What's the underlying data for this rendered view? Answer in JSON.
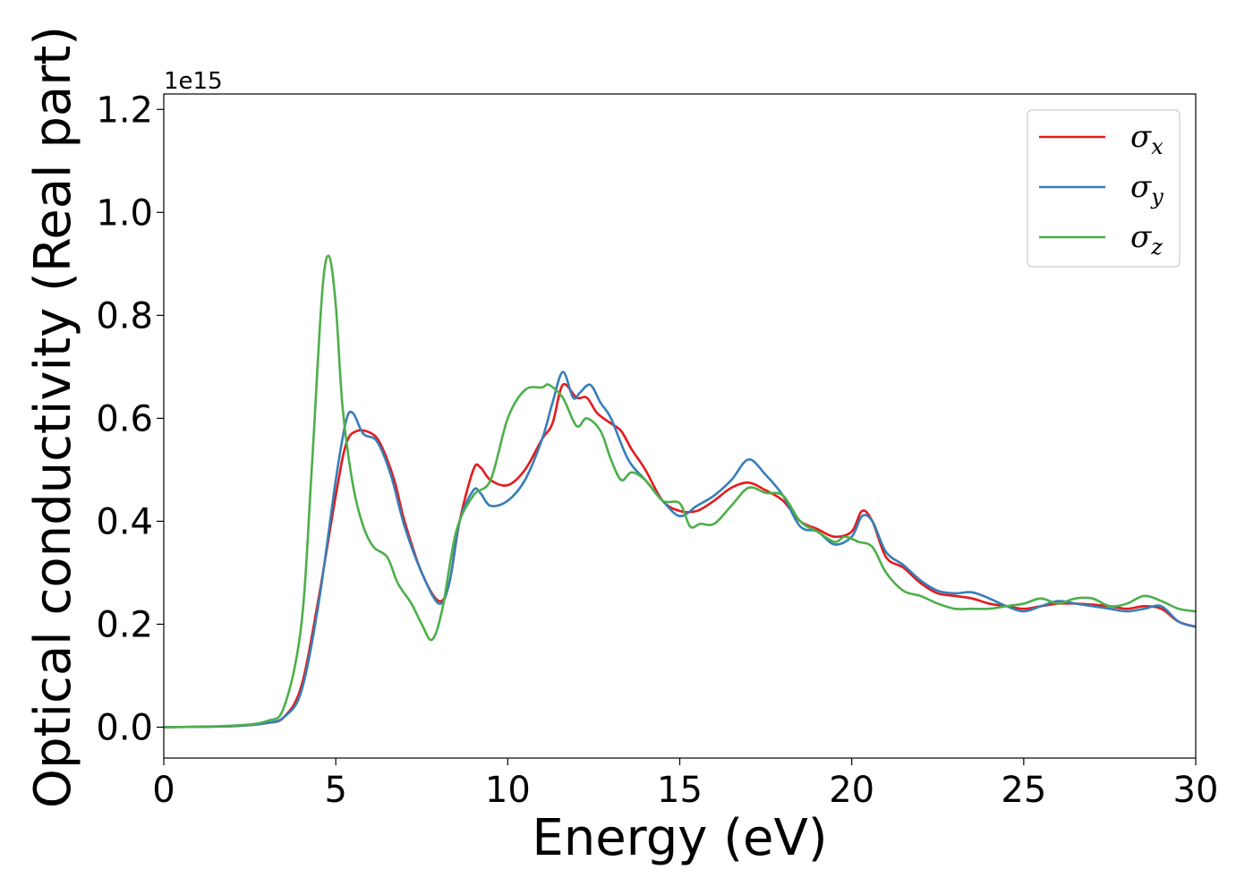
{
  "chart_data": {
    "type": "line",
    "xlabel": "Energy (eV)",
    "ylabel": "Optical conductivity (Real part)",
    "y_offset_label": "1e15",
    "xlim": [
      0,
      30
    ],
    "ylim": [
      -0.06,
      1.23
    ],
    "x_ticks": [
      0,
      5,
      10,
      15,
      20,
      25,
      30
    ],
    "x_tick_labels": [
      "0",
      "5",
      "10",
      "15",
      "20",
      "25",
      "30"
    ],
    "y_ticks": [
      0.0,
      0.2,
      0.4,
      0.6,
      0.8,
      1.0,
      1.2
    ],
    "y_tick_labels": [
      "0.0",
      "0.2",
      "0.4",
      "0.6",
      "0.8",
      "1.0",
      "1.2"
    ],
    "grid": false,
    "legend_position": "top-right",
    "series": [
      {
        "name": "σx",
        "legend_symbol": "σ",
        "legend_subscript": "x",
        "color": "#e41a1c",
        "points": [
          [
            0,
            0
          ],
          [
            2,
            0.002
          ],
          [
            3,
            0.008
          ],
          [
            3.5,
            0.02
          ],
          [
            4,
            0.08
          ],
          [
            4.5,
            0.25
          ],
          [
            5,
            0.45
          ],
          [
            5.3,
            0.55
          ],
          [
            5.6,
            0.575
          ],
          [
            6,
            0.572
          ],
          [
            6.3,
            0.55
          ],
          [
            6.7,
            0.48
          ],
          [
            7,
            0.4
          ],
          [
            7.5,
            0.3
          ],
          [
            8,
            0.245
          ],
          [
            8.3,
            0.28
          ],
          [
            8.6,
            0.4
          ],
          [
            9,
            0.5
          ],
          [
            9.2,
            0.505
          ],
          [
            9.5,
            0.48
          ],
          [
            10,
            0.47
          ],
          [
            10.5,
            0.5
          ],
          [
            11,
            0.56
          ],
          [
            11.3,
            0.59
          ],
          [
            11.6,
            0.665
          ],
          [
            12,
            0.64
          ],
          [
            12.3,
            0.64
          ],
          [
            12.6,
            0.61
          ],
          [
            13,
            0.59
          ],
          [
            13.3,
            0.575
          ],
          [
            13.6,
            0.54
          ],
          [
            14,
            0.5
          ],
          [
            14.5,
            0.44
          ],
          [
            15,
            0.42
          ],
          [
            15.5,
            0.42
          ],
          [
            16,
            0.44
          ],
          [
            16.5,
            0.465
          ],
          [
            17,
            0.475
          ],
          [
            17.5,
            0.46
          ],
          [
            18,
            0.44
          ],
          [
            18.5,
            0.4
          ],
          [
            19,
            0.385
          ],
          [
            19.5,
            0.37
          ],
          [
            20,
            0.38
          ],
          [
            20.3,
            0.42
          ],
          [
            20.6,
            0.4
          ],
          [
            21,
            0.33
          ],
          [
            21.5,
            0.31
          ],
          [
            22,
            0.28
          ],
          [
            22.5,
            0.26
          ],
          [
            23,
            0.255
          ],
          [
            23.5,
            0.25
          ],
          [
            24,
            0.24
          ],
          [
            24.5,
            0.235
          ],
          [
            25,
            0.23
          ],
          [
            25.5,
            0.235
          ],
          [
            26,
            0.24
          ],
          [
            26.5,
            0.24
          ],
          [
            27,
            0.238
          ],
          [
            27.5,
            0.235
          ],
          [
            28,
            0.23
          ],
          [
            28.5,
            0.235
          ],
          [
            29,
            0.23
          ],
          [
            29.5,
            0.205
          ],
          [
            30,
            0.195
          ]
        ]
      },
      {
        "name": "σy",
        "legend_symbol": "σ",
        "legend_subscript": "y",
        "color": "#377eb8",
        "points": [
          [
            0,
            0
          ],
          [
            2,
            0.002
          ],
          [
            3,
            0.008
          ],
          [
            3.5,
            0.02
          ],
          [
            4,
            0.07
          ],
          [
            4.5,
            0.24
          ],
          [
            5,
            0.48
          ],
          [
            5.3,
            0.595
          ],
          [
            5.5,
            0.61
          ],
          [
            5.8,
            0.57
          ],
          [
            6.2,
            0.555
          ],
          [
            6.6,
            0.49
          ],
          [
            7,
            0.39
          ],
          [
            7.5,
            0.3
          ],
          [
            8,
            0.24
          ],
          [
            8.3,
            0.28
          ],
          [
            8.6,
            0.4
          ],
          [
            9,
            0.46
          ],
          [
            9.2,
            0.455
          ],
          [
            9.5,
            0.43
          ],
          [
            10,
            0.44
          ],
          [
            10.5,
            0.48
          ],
          [
            11,
            0.56
          ],
          [
            11.3,
            0.63
          ],
          [
            11.6,
            0.69
          ],
          [
            11.9,
            0.64
          ],
          [
            12.1,
            0.65
          ],
          [
            12.4,
            0.665
          ],
          [
            12.7,
            0.63
          ],
          [
            13,
            0.6
          ],
          [
            13.5,
            0.52
          ],
          [
            14,
            0.48
          ],
          [
            14.5,
            0.44
          ],
          [
            15,
            0.41
          ],
          [
            15.5,
            0.43
          ],
          [
            16,
            0.45
          ],
          [
            16.5,
            0.48
          ],
          [
            17,
            0.52
          ],
          [
            17.5,
            0.49
          ],
          [
            18,
            0.45
          ],
          [
            18.5,
            0.39
          ],
          [
            19,
            0.38
          ],
          [
            19.5,
            0.355
          ],
          [
            20,
            0.37
          ],
          [
            20.3,
            0.41
          ],
          [
            20.6,
            0.4
          ],
          [
            21,
            0.34
          ],
          [
            21.5,
            0.315
          ],
          [
            22,
            0.285
          ],
          [
            22.5,
            0.265
          ],
          [
            23,
            0.26
          ],
          [
            23.5,
            0.262
          ],
          [
            24,
            0.25
          ],
          [
            24.5,
            0.235
          ],
          [
            25,
            0.225
          ],
          [
            25.5,
            0.235
          ],
          [
            26,
            0.245
          ],
          [
            26.5,
            0.24
          ],
          [
            27,
            0.235
          ],
          [
            27.5,
            0.23
          ],
          [
            28,
            0.225
          ],
          [
            28.5,
            0.23
          ],
          [
            29,
            0.235
          ],
          [
            29.5,
            0.205
          ],
          [
            30,
            0.195
          ]
        ]
      },
      {
        "name": "σz",
        "legend_symbol": "σ",
        "legend_subscript": "z",
        "color": "#4daf4a",
        "points": [
          [
            0,
            0
          ],
          [
            2,
            0.003
          ],
          [
            3,
            0.012
          ],
          [
            3.5,
            0.04
          ],
          [
            4,
            0.2
          ],
          [
            4.3,
            0.5
          ],
          [
            4.6,
            0.84
          ],
          [
            4.8,
            0.915
          ],
          [
            5.0,
            0.82
          ],
          [
            5.2,
            0.62
          ],
          [
            5.5,
            0.47
          ],
          [
            5.8,
            0.39
          ],
          [
            6.1,
            0.35
          ],
          [
            6.5,
            0.33
          ],
          [
            6.8,
            0.28
          ],
          [
            7.2,
            0.24
          ],
          [
            7.5,
            0.2
          ],
          [
            7.8,
            0.17
          ],
          [
            8.1,
            0.23
          ],
          [
            8.5,
            0.38
          ],
          [
            9,
            0.45
          ],
          [
            9.5,
            0.48
          ],
          [
            10,
            0.6
          ],
          [
            10.5,
            0.655
          ],
          [
            11,
            0.66
          ],
          [
            11.2,
            0.665
          ],
          [
            11.6,
            0.64
          ],
          [
            12,
            0.585
          ],
          [
            12.3,
            0.6
          ],
          [
            12.7,
            0.575
          ],
          [
            13,
            0.52
          ],
          [
            13.3,
            0.48
          ],
          [
            13.6,
            0.495
          ],
          [
            14,
            0.48
          ],
          [
            14.5,
            0.44
          ],
          [
            15,
            0.435
          ],
          [
            15.3,
            0.39
          ],
          [
            15.6,
            0.395
          ],
          [
            16,
            0.395
          ],
          [
            16.5,
            0.43
          ],
          [
            17,
            0.465
          ],
          [
            17.5,
            0.455
          ],
          [
            18,
            0.45
          ],
          [
            18.5,
            0.4
          ],
          [
            19,
            0.38
          ],
          [
            19.5,
            0.36
          ],
          [
            19.8,
            0.37
          ],
          [
            20.2,
            0.36
          ],
          [
            20.6,
            0.35
          ],
          [
            21,
            0.3
          ],
          [
            21.5,
            0.265
          ],
          [
            22,
            0.255
          ],
          [
            22.5,
            0.24
          ],
          [
            23,
            0.23
          ],
          [
            23.5,
            0.23
          ],
          [
            24,
            0.23
          ],
          [
            24.5,
            0.235
          ],
          [
            25,
            0.24
          ],
          [
            25.5,
            0.25
          ],
          [
            26,
            0.24
          ],
          [
            26.5,
            0.25
          ],
          [
            27,
            0.25
          ],
          [
            27.5,
            0.235
          ],
          [
            28,
            0.24
          ],
          [
            28.5,
            0.255
          ],
          [
            29,
            0.245
          ],
          [
            29.5,
            0.23
          ],
          [
            30,
            0.225
          ]
        ]
      }
    ]
  }
}
